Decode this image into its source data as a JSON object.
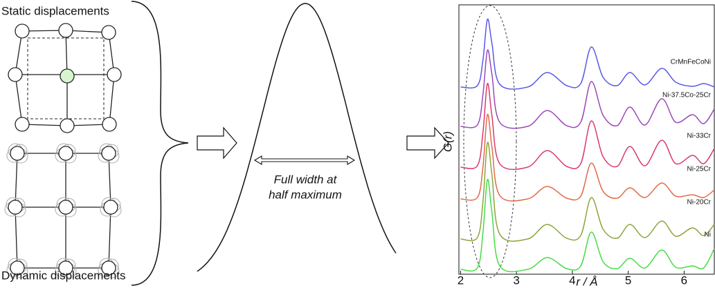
{
  "labels": {
    "static": "Static displacements",
    "dynamic": "Dynamic displacements",
    "fwhm": [
      "Full width at",
      "half maximum"
    ]
  },
  "chart_data": {
    "type": "line",
    "xlabel": "r / Å",
    "ylabel": "G(r)",
    "xlim": [
      1.97,
      6.54
    ],
    "ylim": [
      0,
      39
    ],
    "xticks": [
      2,
      3,
      4,
      5,
      6
    ],
    "x": [
      2.0,
      2.3,
      2.4,
      2.48,
      2.56,
      2.7,
      3.2,
      3.55,
      3.9,
      4.15,
      4.34,
      4.55,
      4.8,
      5.03,
      5.3,
      5.6,
      5.85,
      6.15,
      6.35,
      6.54
    ],
    "series": [
      {
        "name": "CrMnFeCoNi",
        "color": "#5858e8",
        "values": [
          27.1,
          27.3,
          31,
          36.9,
          33.5,
          27.5,
          27.1,
          29.2,
          27.3,
          27.6,
          32.9,
          28.5,
          27.3,
          29.2,
          27.4,
          29.8,
          27.8,
          27.2,
          27.6,
          27.1
        ]
      },
      {
        "name": "Ni-37.5Co-25Cr",
        "color": "#9a48b8",
        "values": [
          21.4,
          21.6,
          26,
          32.4,
          29,
          22,
          21.4,
          23.7,
          21.5,
          22,
          27.9,
          23,
          21.5,
          24.2,
          21.6,
          25.4,
          22,
          23.1,
          21.8,
          23.9
        ]
      },
      {
        "name": "Ni-33Cr",
        "color": "#d83a6a",
        "values": [
          15.5,
          15.7,
          20.5,
          27.6,
          23,
          16,
          15.5,
          17.9,
          15.6,
          16,
          22.2,
          17,
          15.6,
          18.5,
          15.7,
          19.4,
          16,
          17.2,
          16,
          18.2
        ]
      },
      {
        "name": "Ni-25Cr",
        "color": "#e06a48",
        "values": [
          10.9,
          11.1,
          15.5,
          23.1,
          18.5,
          11.4,
          10.9,
          12.7,
          11,
          11.3,
          16.1,
          12,
          11,
          12.5,
          11.1,
          13.2,
          11.3,
          11.5,
          11.1,
          12.2
        ]
      },
      {
        "name": "Ni-20Cr",
        "color": "#8aa63a",
        "values": [
          5.1,
          5.3,
          10.5,
          19,
          14.5,
          5.8,
          5.1,
          7.2,
          5.2,
          5.6,
          11.1,
          6.5,
          5.2,
          7.2,
          5.3,
          7.7,
          5.5,
          6.7,
          5.6,
          7.2
        ]
      },
      {
        "name": "Ni",
        "color": "#44dd44",
        "values": [
          0.7,
          0.9,
          6,
          13.7,
          9,
          1.2,
          0.7,
          2.4,
          0.8,
          1.2,
          6.1,
          1.8,
          0.8,
          2.3,
          0.9,
          3.5,
          1,
          1.2,
          0.9,
          3.7
        ]
      }
    ]
  }
}
